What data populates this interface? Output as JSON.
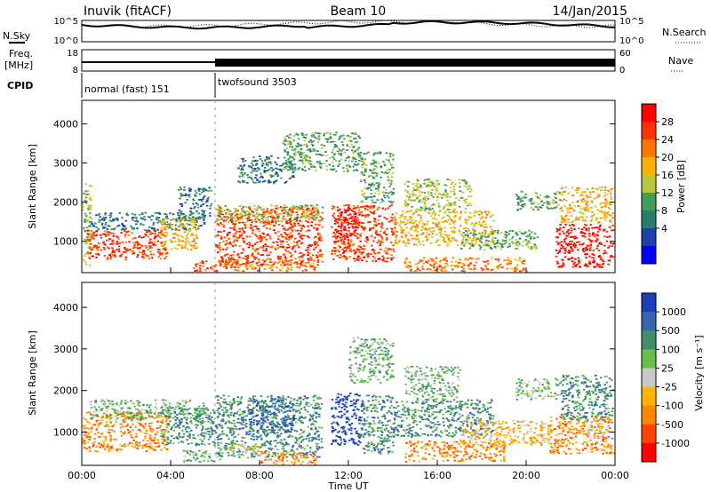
{
  "header": {
    "station": "Inuvik (fitACF)",
    "beam": "Beam 10",
    "date": "14/Jan/2015"
  },
  "side_labels": {
    "nsky": "N.Sky",
    "nsearch": "N.Search",
    "freq_line1": "Freq.",
    "freq_line2": "[MHz]",
    "nave": "Nave",
    "cpid": "CPID"
  },
  "cpid_segments": [
    {
      "label": "normal (fast) 151",
      "start_hour": 0,
      "end_hour": 6
    },
    {
      "label": "twofsound 3503",
      "start_hour": 6,
      "end_hour": 24
    }
  ],
  "noise_axis": {
    "left_ticks": [
      "10^5",
      "10^0"
    ],
    "right_ticks": [
      "10^5",
      "10^0"
    ]
  },
  "freq_axis": {
    "left_ticks": [
      "18",
      "8"
    ],
    "right_ticks": [
      "60",
      "0"
    ]
  },
  "chart_data": [
    {
      "type": "heatmap",
      "name": "power",
      "ylabel": "Slant Range [km]",
      "xlabel": "",
      "xlim": [
        0,
        24
      ],
      "ylim": [
        200,
        4600
      ],
      "yticks": [
        "1000",
        "2000",
        "3000",
        "4000"
      ],
      "colorbar": {
        "label": "Power [dB]",
        "ticks": [
          "28",
          "24",
          "20",
          "16",
          "12",
          "8",
          "4"
        ],
        "colors": [
          "#ff0000",
          "#ff3300",
          "#ff7700",
          "#ffb300",
          "#b7c83a",
          "#3f9e5a",
          "#2a7e6e",
          "#1f3fb0",
          "#0000ff"
        ]
      },
      "regions": [
        {
          "t0": 0.0,
          "t1": 0.4,
          "r0": 400,
          "r1": 2500,
          "level": 4
        },
        {
          "t0": 0.2,
          "t1": 3.8,
          "r0": 550,
          "r1": 1300,
          "level": 1
        },
        {
          "t0": 0.3,
          "t1": 5.5,
          "r0": 1300,
          "r1": 1750,
          "level": 6
        },
        {
          "t0": 3.5,
          "t1": 5.2,
          "r0": 800,
          "r1": 1600,
          "level": 3
        },
        {
          "t0": 4.3,
          "t1": 5.8,
          "r0": 1600,
          "r1": 2400,
          "level": 6
        },
        {
          "t0": 5.0,
          "t1": 6.2,
          "r0": 250,
          "r1": 550,
          "level": 1
        },
        {
          "t0": 6.0,
          "t1": 10.8,
          "r0": 400,
          "r1": 1900,
          "level": 1
        },
        {
          "t0": 6.0,
          "t1": 10.8,
          "r0": 1500,
          "r1": 1950,
          "level": 4
        },
        {
          "t0": 6.3,
          "t1": 10.5,
          "r0": 250,
          "r1": 550,
          "level": 2
        },
        {
          "t0": 7.0,
          "t1": 9.5,
          "r0": 2500,
          "r1": 3200,
          "level": 6
        },
        {
          "t0": 9.0,
          "t1": 12.5,
          "r0": 2800,
          "r1": 3800,
          "level": 5
        },
        {
          "t0": 11.2,
          "t1": 14.0,
          "r0": 500,
          "r1": 1950,
          "level": 1
        },
        {
          "t0": 11.3,
          "t1": 12.3,
          "r0": 1000,
          "r1": 1900,
          "level": 0
        },
        {
          "t0": 12.5,
          "t1": 14.0,
          "r0": 2000,
          "r1": 3300,
          "level": 5
        },
        {
          "t0": 14.0,
          "t1": 18.5,
          "r0": 900,
          "r1": 1800,
          "level": 3
        },
        {
          "t0": 14.5,
          "t1": 17.5,
          "r0": 1800,
          "r1": 2600,
          "level": 4
        },
        {
          "t0": 14.5,
          "t1": 20.0,
          "r0": 250,
          "r1": 600,
          "level": 2
        },
        {
          "t0": 17.0,
          "t1": 20.5,
          "r0": 800,
          "r1": 1300,
          "level": 5
        },
        {
          "t0": 19.5,
          "t1": 21.5,
          "r0": 1800,
          "r1": 2300,
          "level": 5
        },
        {
          "t0": 21.3,
          "t1": 24.0,
          "r0": 350,
          "r1": 1450,
          "level": 0
        },
        {
          "t0": 21.5,
          "t1": 24.0,
          "r0": 1500,
          "r1": 2400,
          "level": 3
        }
      ]
    },
    {
      "type": "heatmap",
      "name": "velocity",
      "ylabel": "Slant Range [km]",
      "xlabel": "Time UT",
      "xlim": [
        0,
        24
      ],
      "ylim": [
        200,
        4600
      ],
      "yticks": [
        "1000",
        "2000",
        "3000",
        "4000"
      ],
      "xticks": [
        "00:00",
        "04:00",
        "08:00",
        "12:00",
        "16:00",
        "20:00",
        "00:00"
      ],
      "colorbar": {
        "label": "Velocity [m s⁻¹]",
        "ticks": [
          "1000",
          "500",
          "100",
          "25",
          "-25",
          "-100",
          "-500",
          "-1000"
        ],
        "colors": [
          "#1a3fb8",
          "#3a63b0",
          "#3e8f6a",
          "#66c04a",
          "#c8c8c8",
          "#ffb300",
          "#ff8800",
          "#ff4400",
          "#ff0000"
        ]
      },
      "regions": [
        {
          "t0": 0.0,
          "t1": 3.8,
          "r0": 550,
          "r1": 1500,
          "level": 6
        },
        {
          "t0": 0.3,
          "t1": 5.5,
          "r0": 1300,
          "r1": 1800,
          "level": 3
        },
        {
          "t0": 3.5,
          "t1": 6.0,
          "r0": 700,
          "r1": 1600,
          "level": 2
        },
        {
          "t0": 4.5,
          "t1": 6.2,
          "r0": 300,
          "r1": 600,
          "level": 3
        },
        {
          "t0": 6.0,
          "t1": 10.8,
          "r0": 400,
          "r1": 1900,
          "level": 2
        },
        {
          "t0": 7.5,
          "t1": 9.5,
          "r0": 1000,
          "r1": 1800,
          "level": 1
        },
        {
          "t0": 6.5,
          "t1": 8.0,
          "r0": 450,
          "r1": 750,
          "level": 4
        },
        {
          "t0": 8.0,
          "t1": 10.5,
          "r0": 250,
          "r1": 550,
          "level": 6
        },
        {
          "t0": 11.2,
          "t1": 12.6,
          "r0": 700,
          "r1": 1950,
          "level": 0
        },
        {
          "t0": 12.6,
          "t1": 14.0,
          "r0": 500,
          "r1": 1900,
          "level": 2
        },
        {
          "t0": 12.0,
          "t1": 14.0,
          "r0": 2200,
          "r1": 3300,
          "level": 3
        },
        {
          "t0": 14.0,
          "t1": 18.5,
          "r0": 900,
          "r1": 1800,
          "level": 2
        },
        {
          "t0": 14.5,
          "t1": 17.0,
          "r0": 1800,
          "r1": 2600,
          "level": 3
        },
        {
          "t0": 14.5,
          "t1": 19.0,
          "r0": 300,
          "r1": 800,
          "level": 6
        },
        {
          "t0": 17.0,
          "t1": 21.0,
          "r0": 700,
          "r1": 1300,
          "level": 5
        },
        {
          "t0": 19.5,
          "t1": 21.5,
          "r0": 1800,
          "r1": 2300,
          "level": 3
        },
        {
          "t0": 21.0,
          "t1": 24.0,
          "r0": 500,
          "r1": 1400,
          "level": 6
        },
        {
          "t0": 21.5,
          "t1": 24.0,
          "r0": 1300,
          "r1": 2400,
          "level": 2
        },
        {
          "t0": 22.5,
          "t1": 23.5,
          "r0": 900,
          "r1": 1300,
          "level": 4
        }
      ]
    }
  ]
}
